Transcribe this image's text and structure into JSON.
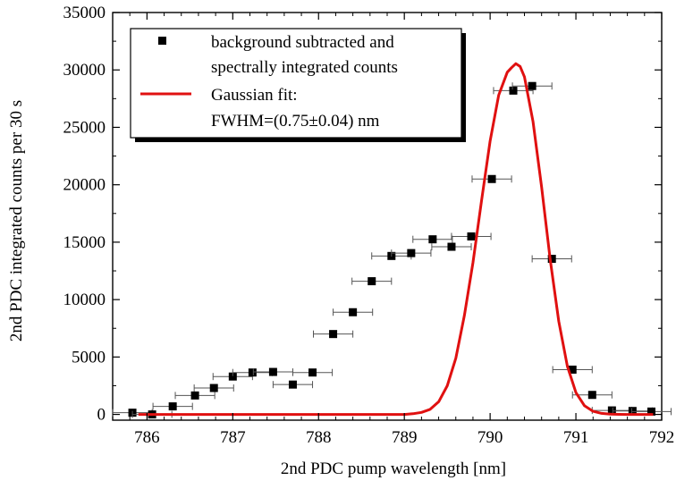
{
  "chart_data": {
    "type": "scatter",
    "title": "",
    "xlabel": "2nd PDC pump wavelength [nm]",
    "ylabel": "2nd PDC integrated counts per 30 s",
    "xlim": [
      785.6,
      792.0
    ],
    "ylim": [
      -500,
      35000
    ],
    "xticks": [
      786,
      787,
      788,
      789,
      790,
      791,
      792
    ],
    "yticks": [
      0,
      5000,
      10000,
      15000,
      20000,
      25000,
      30000,
      35000
    ],
    "x_tick_labels": [
      "786",
      "787",
      "788",
      "789",
      "790",
      "791",
      "792"
    ],
    "y_tick_labels": [
      "0",
      "5000",
      "10000",
      "15000",
      "20000",
      "25000",
      "30000",
      "35000"
    ],
    "grid": false,
    "legend_position": "top-left",
    "legend": [
      {
        "marker": "square",
        "label_lines": [
          "background subtracted and",
          "spectrally integrated counts"
        ]
      },
      {
        "marker": "line",
        "label_lines": [
          "Gaussian fit:",
          "FWHM=(0.75±0.04) nm"
        ]
      }
    ],
    "series": [
      {
        "name": "background subtracted and spectrally integrated counts",
        "kind": "points",
        "color": "#000000",
        "points": [
          {
            "x": 785.83,
            "y": 150,
            "xerr": 0.23
          },
          {
            "x": 786.06,
            "y": 0,
            "xerr": 0.23
          },
          {
            "x": 786.3,
            "y": 700,
            "xerr": 0.23
          },
          {
            "x": 786.56,
            "y": 1650,
            "xerr": 0.23
          },
          {
            "x": 786.78,
            "y": 2300,
            "xerr": 0.23
          },
          {
            "x": 787.0,
            "y": 3300,
            "xerr": 0.23
          },
          {
            "x": 787.23,
            "y": 3650,
            "xerr": 0.23
          },
          {
            "x": 787.47,
            "y": 3700,
            "xerr": 0.23
          },
          {
            "x": 787.7,
            "y": 2600,
            "xerr": 0.23
          },
          {
            "x": 787.93,
            "y": 3650,
            "xerr": 0.23
          },
          {
            "x": 788.17,
            "y": 7000,
            "xerr": 0.23
          },
          {
            "x": 788.4,
            "y": 8900,
            "xerr": 0.23
          },
          {
            "x": 788.62,
            "y": 11600,
            "xerr": 0.23
          },
          {
            "x": 788.85,
            "y": 13800,
            "xerr": 0.23
          },
          {
            "x": 789.08,
            "y": 14050,
            "xerr": 0.23
          },
          {
            "x": 789.33,
            "y": 15250,
            "xerr": 0.23
          },
          {
            "x": 789.55,
            "y": 14600,
            "xerr": 0.23
          },
          {
            "x": 789.78,
            "y": 15500,
            "xerr": 0.23
          },
          {
            "x": 790.02,
            "y": 20500,
            "xerr": 0.23
          },
          {
            "x": 790.27,
            "y": 28200,
            "xerr": 0.23
          },
          {
            "x": 790.49,
            "y": 28600,
            "xerr": 0.23
          },
          {
            "x": 790.72,
            "y": 13550,
            "xerr": 0.23
          },
          {
            "x": 790.96,
            "y": 3900,
            "xerr": 0.23
          },
          {
            "x": 791.19,
            "y": 1700,
            "xerr": 0.23
          },
          {
            "x": 791.42,
            "y": 350,
            "xerr": 0.23
          },
          {
            "x": 791.66,
            "y": 300,
            "xerr": 0.23
          },
          {
            "x": 791.88,
            "y": 250,
            "xerr": 0.23
          }
        ]
      },
      {
        "name": "Gaussian fit: FWHM=(0.75±0.04) nm",
        "kind": "line",
        "color": "#e01010",
        "x": [
          785.9,
          786.5,
          787.0,
          787.5,
          788.0,
          788.5,
          789.0,
          789.1,
          789.2,
          789.3,
          789.4,
          789.5,
          789.6,
          789.7,
          789.8,
          789.9,
          790.0,
          790.1,
          790.2,
          790.25,
          790.3,
          790.35,
          790.4,
          790.5,
          790.6,
          790.7,
          790.8,
          790.9,
          791.0,
          791.1,
          791.2,
          791.3,
          791.4,
          791.5,
          791.6,
          791.7,
          791.9
        ],
        "y": [
          0,
          0,
          0,
          0,
          0,
          0,
          0,
          60,
          180,
          440,
          1100,
          2500,
          4900,
          8600,
          13200,
          18600,
          23800,
          27800,
          29800,
          30200,
          30550,
          30300,
          29400,
          25500,
          19800,
          13500,
          8100,
          4200,
          1900,
          750,
          270,
          90,
          25,
          5,
          0,
          0,
          0
        ]
      }
    ]
  }
}
